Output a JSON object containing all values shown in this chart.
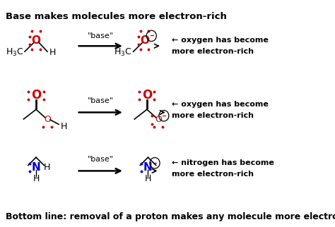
{
  "title": "Base makes molecules more electron-rich",
  "bottom_line": "Bottom line: removal of a proton makes any molecule more electron-rich",
  "bg_color": "#ffffff",
  "red": "#cc0000",
  "blue": "#0000cc",
  "black": "#000000",
  "rows": [
    {
      "note1": "← oxygen has become",
      "note2": "more electron-rich"
    },
    {
      "note1": "← oxygen has become",
      "note2": "more electron-rich"
    },
    {
      "note1": "← nitrogen has become",
      "note2": "more electron-rich"
    }
  ]
}
